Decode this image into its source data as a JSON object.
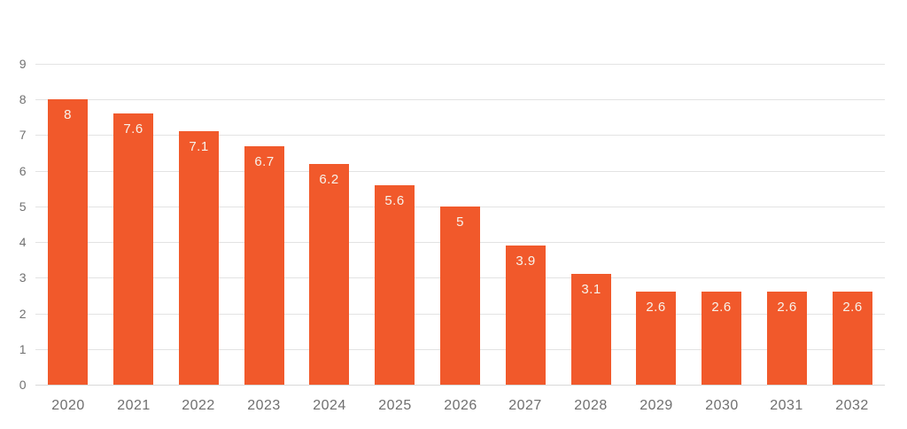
{
  "chart_data": {
    "type": "bar",
    "title": "",
    "xlabel": "",
    "ylabel": "",
    "categories": [
      "2020",
      "2021",
      "2022",
      "2023",
      "2024",
      "2025",
      "2026",
      "2027",
      "2028",
      "2029",
      "2030",
      "2031",
      "2032"
    ],
    "values": [
      8,
      7.6,
      7.1,
      6.7,
      6.2,
      5.6,
      5,
      3.9,
      3.1,
      2.6,
      2.6,
      2.6,
      2.6
    ],
    "value_labels": [
      "8",
      "7.6",
      "7.1",
      "6.7",
      "6.2",
      "5.6",
      "5",
      "3.9",
      "3.1",
      "2.6",
      "2.6",
      "2.6",
      "2.6"
    ],
    "ylim": [
      0,
      9
    ],
    "ytick_step": 1,
    "ytick_labels": [
      "0",
      "1",
      "2",
      "3",
      "4",
      "5",
      "6",
      "7",
      "8",
      "9"
    ],
    "grid": true,
    "legend": "none",
    "colors": {
      "bar": "#f1592b",
      "value_label": "#f7f2ea",
      "axis_label": "#6f6f6f",
      "ytick_label": "#717171",
      "gridline": "#e3e3e3",
      "baseline": "#d9d9d9",
      "background": "#ffffff"
    }
  }
}
